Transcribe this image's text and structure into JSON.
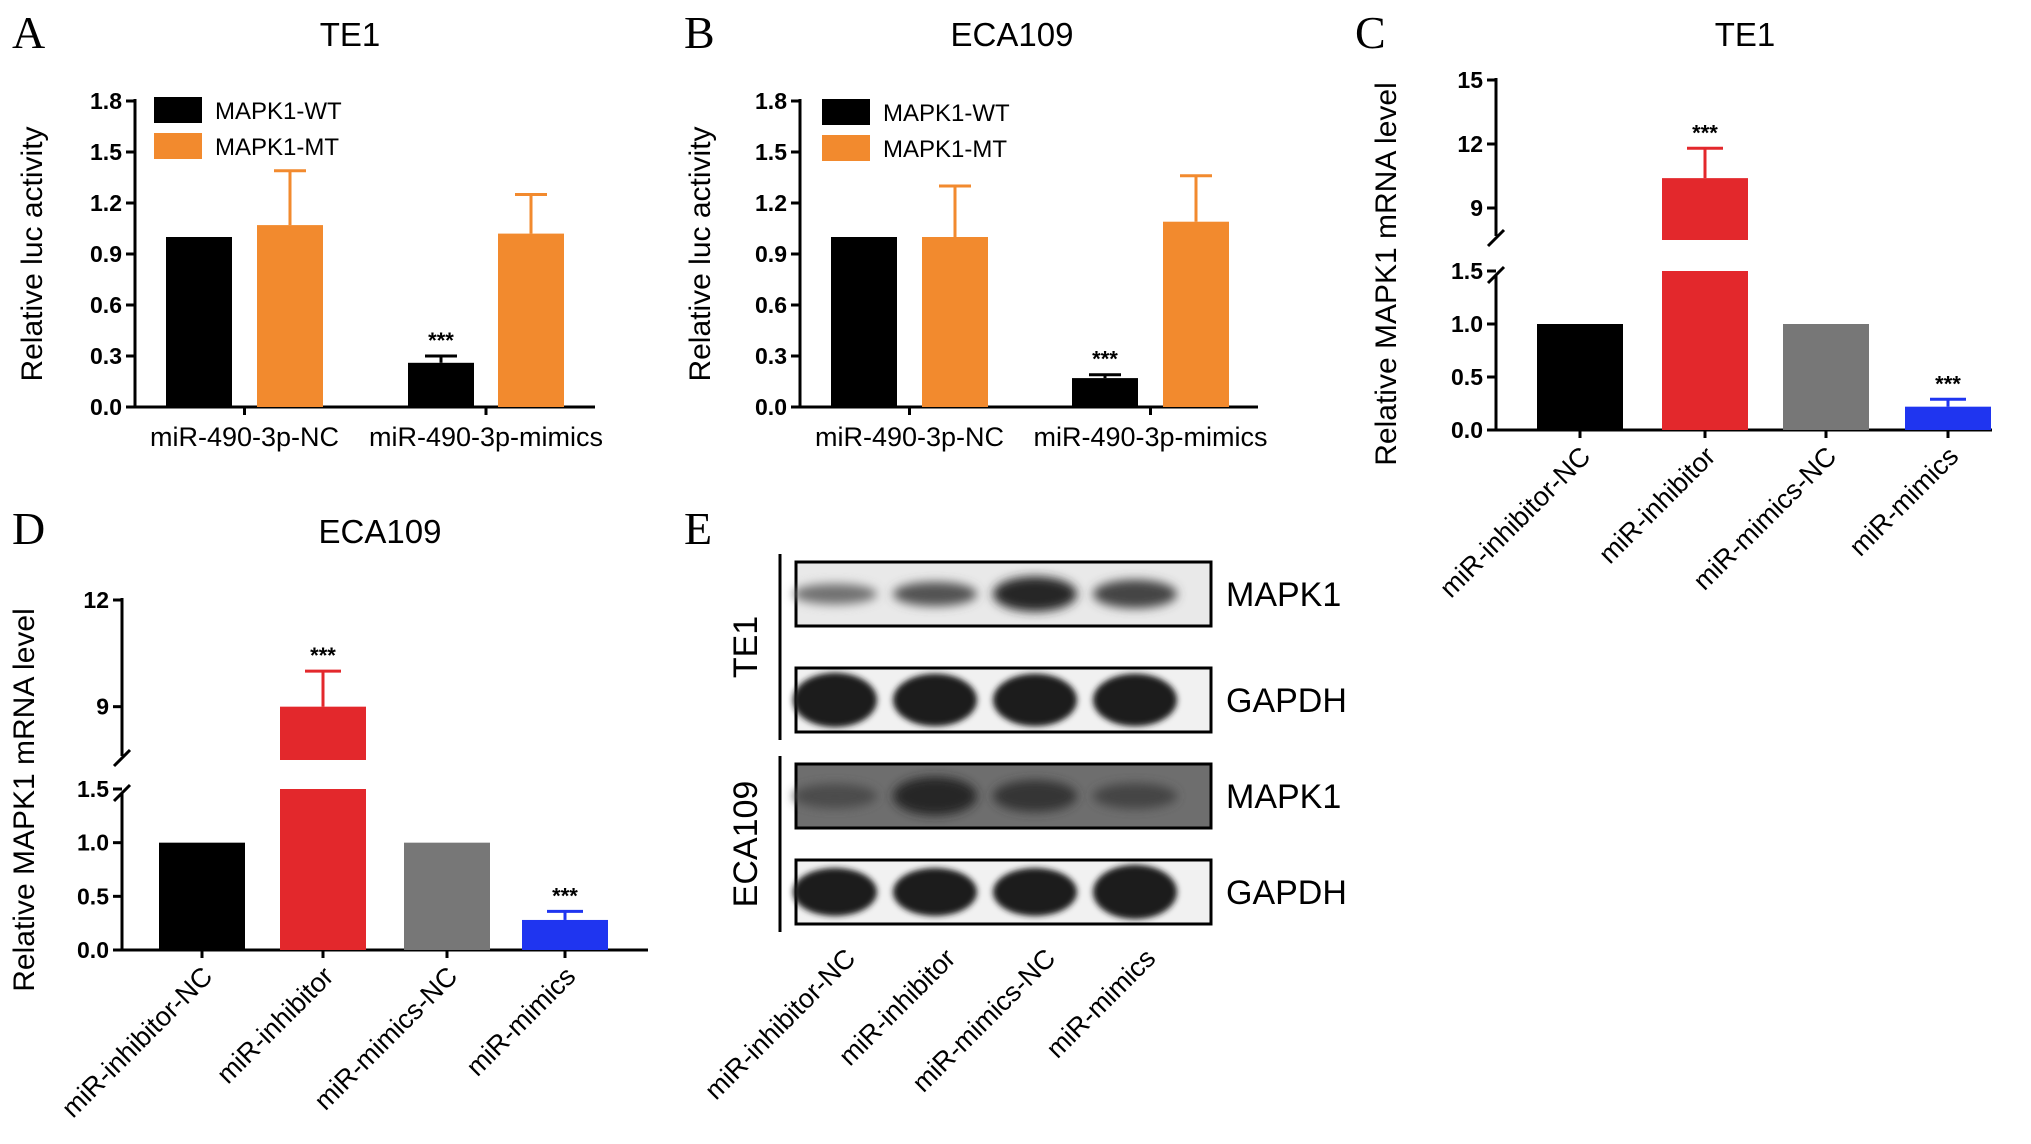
{
  "chart_data": [
    {
      "panel": "A",
      "type": "bar",
      "title": "TE1",
      "ylabel": "Relative luc activity",
      "xlabel": "",
      "ylim": [
        0,
        1.8
      ],
      "yticks": [
        "0.0",
        "0.3",
        "0.6",
        "0.9",
        "1.2",
        "1.5",
        "1.8"
      ],
      "grid": false,
      "legend_position": "top-left",
      "categories": [
        "miR-490-3p-NC",
        "miR-490-3p-mimics"
      ],
      "series": [
        {
          "name": "MAPK1-WT",
          "color": "#000000",
          "values": [
            1.0,
            0.26
          ],
          "errors": [
            0,
            0.04
          ],
          "significance": [
            "",
            "***"
          ]
        },
        {
          "name": "MAPK1-MT",
          "color": "#f28a2e",
          "values": [
            1.07,
            1.02
          ],
          "errors": [
            0.32,
            0.23
          ],
          "significance": [
            "",
            ""
          ]
        }
      ]
    },
    {
      "panel": "B",
      "type": "bar",
      "title": "ECA109",
      "ylabel": "Relative luc activity",
      "xlabel": "",
      "ylim": [
        0,
        1.8
      ],
      "yticks": [
        "0.0",
        "0.3",
        "0.6",
        "0.9",
        "1.2",
        "1.5",
        "1.8"
      ],
      "grid": false,
      "legend_position": "top-left",
      "categories": [
        "miR-490-3p-NC",
        "miR-490-3p-mimics"
      ],
      "series": [
        {
          "name": "MAPK1-WT",
          "color": "#000000",
          "values": [
            1.0,
            0.17
          ],
          "errors": [
            0,
            0.02
          ],
          "significance": [
            "",
            "***"
          ]
        },
        {
          "name": "MAPK1-MT",
          "color": "#f28a2e",
          "values": [
            1.0,
            1.09
          ],
          "errors": [
            0.3,
            0.27
          ],
          "significance": [
            "",
            ""
          ]
        }
      ]
    },
    {
      "panel": "C",
      "type": "bar",
      "title": "TE1",
      "ylabel": "Relative MAPK1 mRNA level",
      "xlabel": "",
      "broken_axis": true,
      "lower_ylim": [
        0,
        1.5
      ],
      "lower_yticks": [
        "0.0",
        "0.5",
        "1.0",
        "1.5"
      ],
      "upper_ylim": [
        7.5,
        15
      ],
      "upper_yticks": [
        "9",
        "12",
        "15"
      ],
      "grid": false,
      "categories": [
        "miR-inhibitor-NC",
        "miR-inhibitor",
        "miR-mimics-NC",
        "miR-mimics"
      ],
      "values": [
        1.0,
        10.4,
        1.0,
        0.22
      ],
      "errors": [
        0,
        1.4,
        0,
        0.07
      ],
      "colors": [
        "#000000",
        "#e3282c",
        "#777777",
        "#1f35f0"
      ],
      "significance": [
        "",
        "***",
        "",
        "***"
      ]
    },
    {
      "panel": "D",
      "type": "bar",
      "title": "ECA109",
      "ylabel": "Relative MAPK1 mRNA level",
      "xlabel": "",
      "broken_axis": true,
      "lower_ylim": [
        0,
        1.5
      ],
      "lower_yticks": [
        "0.0",
        "0.5",
        "1.0",
        "1.5"
      ],
      "upper_ylim": [
        7.5,
        12
      ],
      "upper_yticks": [
        "9",
        "12"
      ],
      "grid": false,
      "categories": [
        "miR-inhibitor-NC",
        "miR-inhibitor",
        "miR-mimics-NC",
        "miR-mimics"
      ],
      "values": [
        1.0,
        9.0,
        1.0,
        0.28
      ],
      "errors": [
        0,
        1.0,
        0,
        0.08
      ],
      "colors": [
        "#000000",
        "#e3282c",
        "#777777",
        "#1f35f0"
      ],
      "significance": [
        "",
        "***",
        "",
        "***"
      ]
    }
  ],
  "blot": {
    "panel": "E",
    "lanes": [
      "miR-inhibitor-NC",
      "miR-inhibitor",
      "miR-mimics-NC",
      "miR-mimics"
    ],
    "groups": [
      {
        "name": "TE1",
        "rows": [
          {
            "label": "MAPK1",
            "background": "#e9e9e9",
            "intensity": [
              0.45,
              0.65,
              0.95,
              0.75
            ],
            "thickness": [
              0.32,
              0.38,
              0.55,
              0.45
            ]
          },
          {
            "label": "GAPDH",
            "background": "#f1f1f1",
            "intensity": [
              1.0,
              1.0,
              1.0,
              1.0
            ],
            "thickness": [
              0.85,
              0.82,
              0.82,
              0.82
            ]
          }
        ]
      },
      {
        "name": "ECA109",
        "rows": [
          {
            "label": "MAPK1",
            "background": "#6e6e6e",
            "intensity": [
              0.7,
              0.95,
              0.85,
              0.75
            ],
            "thickness": [
              0.38,
              0.6,
              0.5,
              0.4
            ]
          },
          {
            "label": "GAPDH",
            "background": "#f1f1f1",
            "intensity": [
              1.0,
              1.0,
              1.0,
              1.0
            ],
            "thickness": [
              0.75,
              0.75,
              0.75,
              0.85
            ]
          }
        ]
      }
    ]
  }
}
